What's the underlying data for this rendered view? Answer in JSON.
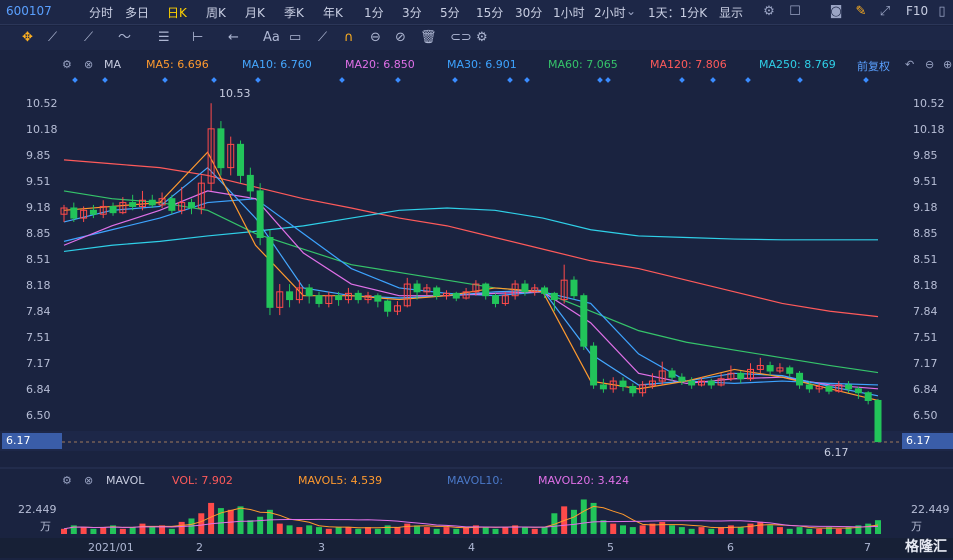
{
  "topbar": {
    "code": "600107",
    "periods": [
      "分时",
      "多日",
      "日K",
      "周K",
      "月K",
      "季K",
      "年K",
      "1分",
      "3分",
      "5分",
      "15分",
      "30分",
      "1小时",
      "2小时"
    ],
    "active_period": "日K",
    "range_select": "1天：1分K",
    "display_label": "显示",
    "f10": "F10"
  },
  "ma_header": {
    "indicator": "MA",
    "items": [
      {
        "label": "MA5: 6.696",
        "color": "#ff9a2e"
      },
      {
        "label": "MA10: 6.760",
        "color": "#45a8ff"
      },
      {
        "label": "MA20: 6.850",
        "color": "#e070e8"
      },
      {
        "label": "MA30: 6.901",
        "color": "#3da3ff"
      },
      {
        "label": "MA60: 7.065",
        "color": "#35c46a"
      },
      {
        "label": "MA120: 7.806",
        "color": "#ff5a5a"
      },
      {
        "label": "MA250: 8.769",
        "color": "#2fd0e8"
      }
    ],
    "adjust": "前复权"
  },
  "price_axis": [
    "10.52",
    "10.18",
    "9.85",
    "9.51",
    "9.18",
    "8.85",
    "8.51",
    "8.18",
    "7.84",
    "7.51",
    "7.17",
    "6.84",
    "6.50"
  ],
  "current_price": "6.17",
  "high_marker": "10.53",
  "low_marker": "6.17",
  "vol_header": {
    "indicator": "MAVOL",
    "vol": "VOL: 7.902",
    "mavol5": "MAVOL5: 4.539",
    "mavol10": "MAVOL10:",
    "mavol20": "MAVOL20: 3.424",
    "vol_color": "#ff5a5a",
    "mavol5_color": "#ff9a2e",
    "mavol10_color": "#4a78c8",
    "mavol20_color": "#e070e8"
  },
  "vol_axis": {
    "value": "22.449",
    "unit": "万"
  },
  "x_labels": [
    "2021/01",
    "2",
    "3",
    "4",
    "5",
    "6",
    "7"
  ],
  "logo": "格隆汇",
  "candles": [
    [
      9.1,
      9.18,
      9.22,
      9.0,
      1
    ],
    [
      9.18,
      9.05,
      9.25,
      9.0,
      0
    ],
    [
      9.05,
      9.15,
      9.2,
      9.0,
      1
    ],
    [
      9.15,
      9.1,
      9.22,
      9.05,
      0
    ],
    [
      9.1,
      9.2,
      9.28,
      9.05,
      1
    ],
    [
      9.2,
      9.12,
      9.25,
      9.08,
      0
    ],
    [
      9.12,
      9.25,
      9.32,
      9.1,
      1
    ],
    [
      9.25,
      9.2,
      9.35,
      9.15,
      0
    ],
    [
      9.2,
      9.28,
      9.4,
      9.15,
      1
    ],
    [
      9.28,
      9.22,
      9.35,
      9.18,
      0
    ],
    [
      9.22,
      9.3,
      9.38,
      9.18,
      1
    ],
    [
      9.3,
      9.15,
      9.35,
      9.1,
      0
    ],
    [
      9.15,
      9.25,
      9.45,
      9.1,
      1
    ],
    [
      9.25,
      9.18,
      9.3,
      9.1,
      0
    ],
    [
      9.18,
      9.5,
      9.6,
      9.1,
      1
    ],
    [
      9.5,
      10.2,
      10.53,
      9.4,
      1
    ],
    [
      10.2,
      9.7,
      10.3,
      9.6,
      0
    ],
    [
      9.7,
      10.0,
      10.1,
      9.6,
      1
    ],
    [
      10.0,
      9.6,
      10.05,
      9.5,
      0
    ],
    [
      9.6,
      9.4,
      9.7,
      9.3,
      0
    ],
    [
      9.4,
      8.8,
      9.5,
      8.7,
      0
    ],
    [
      8.8,
      7.9,
      8.9,
      7.8,
      0
    ],
    [
      7.9,
      8.1,
      8.2,
      7.8,
      1
    ],
    [
      8.1,
      8.0,
      8.2,
      7.9,
      0
    ],
    [
      8.0,
      8.15,
      8.25,
      7.95,
      1
    ],
    [
      8.15,
      8.05,
      8.2,
      7.95,
      0
    ],
    [
      8.05,
      7.95,
      8.1,
      7.9,
      0
    ],
    [
      7.95,
      8.05,
      8.1,
      7.9,
      1
    ],
    [
      8.05,
      8.0,
      8.1,
      7.92,
      0
    ],
    [
      8.0,
      8.08,
      8.15,
      7.95,
      1
    ],
    [
      8.08,
      8.0,
      8.12,
      7.95,
      0
    ],
    [
      8.0,
      8.05,
      8.1,
      7.95,
      1
    ],
    [
      8.05,
      7.98,
      8.08,
      7.9,
      0
    ],
    [
      7.98,
      7.85,
      8.0,
      7.78,
      0
    ],
    [
      7.85,
      7.92,
      7.98,
      7.8,
      1
    ],
    [
      7.92,
      8.2,
      8.28,
      7.9,
      1
    ],
    [
      8.2,
      8.1,
      8.25,
      8.0,
      0
    ],
    [
      8.1,
      8.15,
      8.2,
      8.05,
      1
    ],
    [
      8.15,
      8.05,
      8.18,
      8.0,
      0
    ],
    [
      8.05,
      8.08,
      8.12,
      8.0,
      1
    ],
    [
      8.08,
      8.02,
      8.1,
      7.98,
      0
    ],
    [
      8.02,
      8.1,
      8.15,
      8.0,
      1
    ],
    [
      8.1,
      8.2,
      8.25,
      8.05,
      1
    ],
    [
      8.2,
      8.05,
      8.22,
      8.0,
      0
    ],
    [
      8.05,
      7.95,
      8.08,
      7.9,
      0
    ],
    [
      7.95,
      8.05,
      8.1,
      7.92,
      1
    ],
    [
      8.05,
      8.2,
      8.25,
      8.0,
      1
    ],
    [
      8.2,
      8.1,
      8.25,
      8.05,
      0
    ],
    [
      8.1,
      8.15,
      8.2,
      8.05,
      1
    ],
    [
      8.15,
      8.08,
      8.18,
      8.02,
      0
    ],
    [
      8.08,
      8.0,
      8.1,
      7.85,
      0
    ],
    [
      8.0,
      8.25,
      8.45,
      7.95,
      1
    ],
    [
      8.25,
      8.05,
      8.3,
      8.0,
      0
    ],
    [
      8.05,
      7.4,
      8.08,
      7.35,
      0
    ],
    [
      7.4,
      6.9,
      7.45,
      6.85,
      0
    ],
    [
      6.9,
      6.85,
      6.98,
      6.8,
      0
    ],
    [
      6.85,
      6.95,
      7.0,
      6.8,
      1
    ],
    [
      6.95,
      6.88,
      7.0,
      6.82,
      0
    ],
    [
      6.88,
      6.8,
      6.92,
      6.75,
      0
    ],
    [
      6.8,
      6.9,
      6.95,
      6.75,
      1
    ],
    [
      6.9,
      6.95,
      7.05,
      6.85,
      1
    ],
    [
      6.95,
      7.08,
      7.2,
      6.9,
      1
    ],
    [
      7.08,
      7.0,
      7.12,
      6.95,
      0
    ],
    [
      7.0,
      6.95,
      7.05,
      6.9,
      0
    ],
    [
      6.95,
      6.9,
      7.0,
      6.85,
      0
    ],
    [
      6.9,
      6.95,
      7.0,
      6.88,
      1
    ],
    [
      6.95,
      6.9,
      6.98,
      6.85,
      0
    ],
    [
      6.9,
      6.98,
      7.05,
      6.88,
      1
    ],
    [
      6.98,
      7.05,
      7.15,
      6.95,
      1
    ],
    [
      7.05,
      6.98,
      7.08,
      6.92,
      0
    ],
    [
      6.98,
      7.1,
      7.18,
      6.95,
      1
    ],
    [
      7.1,
      7.15,
      7.25,
      7.05,
      1
    ],
    [
      7.15,
      7.08,
      7.2,
      7.02,
      0
    ],
    [
      7.08,
      7.12,
      7.18,
      7.05,
      1
    ],
    [
      7.12,
      7.05,
      7.15,
      7.0,
      0
    ],
    [
      7.05,
      6.9,
      7.08,
      6.85,
      0
    ],
    [
      6.9,
      6.85,
      6.95,
      6.8,
      0
    ],
    [
      6.85,
      6.88,
      6.92,
      6.8,
      1
    ],
    [
      6.88,
      6.82,
      6.9,
      6.78,
      0
    ],
    [
      6.82,
      6.9,
      6.95,
      6.8,
      1
    ],
    [
      6.9,
      6.85,
      6.95,
      6.8,
      0
    ],
    [
      6.85,
      6.8,
      6.88,
      6.72,
      0
    ],
    [
      6.8,
      6.7,
      6.82,
      6.65,
      0
    ],
    [
      6.7,
      6.17,
      6.72,
      6.17,
      0
    ]
  ],
  "volumes": [
    3,
    5,
    4,
    3,
    4,
    5,
    3,
    4,
    6,
    4,
    5,
    3,
    7,
    9,
    12,
    18,
    15,
    14,
    16,
    8,
    10,
    14,
    6,
    5,
    4,
    5,
    4,
    3,
    4,
    4,
    3,
    4,
    3,
    5,
    4,
    6,
    5,
    4,
    3,
    4,
    3,
    4,
    5,
    4,
    3,
    4,
    5,
    4,
    3,
    4,
    12,
    16,
    14,
    20,
    18,
    8,
    6,
    5,
    4,
    5,
    6,
    7,
    5,
    4,
    3,
    4,
    3,
    4,
    5,
    4,
    6,
    7,
    5,
    4,
    3,
    4,
    3,
    3,
    4,
    3,
    4,
    5,
    6,
    8
  ],
  "ma_lines": [
    {
      "name": "MA120",
      "color": "#ff5a5a",
      "pts": [
        9.8,
        9.75,
        9.7,
        9.6,
        9.45,
        9.3,
        9.18,
        9.05,
        8.95,
        8.8,
        8.65,
        8.5,
        8.4,
        8.25,
        8.1,
        7.95,
        7.85,
        7.78
      ]
    },
    {
      "name": "MA250",
      "color": "#2fd0e8",
      "pts": [
        8.62,
        8.7,
        8.75,
        8.82,
        8.88,
        8.95,
        9.05,
        9.15,
        9.18,
        9.15,
        9.05,
        8.9,
        8.82,
        8.8,
        8.78,
        8.77,
        8.77,
        8.77
      ]
    },
    {
      "name": "MA60",
      "color": "#35c46a",
      "pts": [
        9.4,
        9.3,
        9.25,
        9.15,
        8.85,
        8.65,
        8.45,
        8.35,
        8.25,
        8.15,
        8.1,
        7.85,
        7.6,
        7.45,
        7.35,
        7.25,
        7.15,
        7.06
      ]
    },
    {
      "name": "MA30",
      "color": "#3da3ff",
      "pts": [
        8.75,
        8.9,
        9.05,
        9.25,
        9.3,
        8.85,
        8.4,
        8.15,
        8.08,
        8.05,
        8.1,
        7.95,
        7.3,
        6.95,
        6.92,
        6.95,
        6.92,
        6.9
      ]
    },
    {
      "name": "MA20",
      "color": "#e070e8",
      "pts": [
        8.7,
        8.95,
        9.15,
        9.4,
        9.3,
        8.6,
        8.2,
        8.05,
        8.05,
        8.08,
        8.1,
        7.7,
        7.05,
        6.92,
        6.98,
        7.0,
        6.9,
        6.85
      ]
    },
    {
      "name": "MA10",
      "color": "#45a8ff",
      "pts": [
        9.0,
        9.15,
        9.2,
        9.7,
        9.05,
        8.15,
        8.05,
        8.02,
        8.05,
        8.1,
        8.12,
        7.3,
        6.9,
        6.95,
        7.05,
        7.02,
        6.88,
        6.76
      ]
    },
    {
      "name": "MA5",
      "color": "#ff9a2e",
      "pts": [
        9.15,
        9.2,
        9.25,
        9.9,
        8.7,
        8.05,
        8.05,
        8.0,
        8.05,
        8.15,
        8.1,
        6.95,
        6.85,
        6.95,
        7.1,
        7.0,
        6.85,
        6.7
      ]
    }
  ]
}
